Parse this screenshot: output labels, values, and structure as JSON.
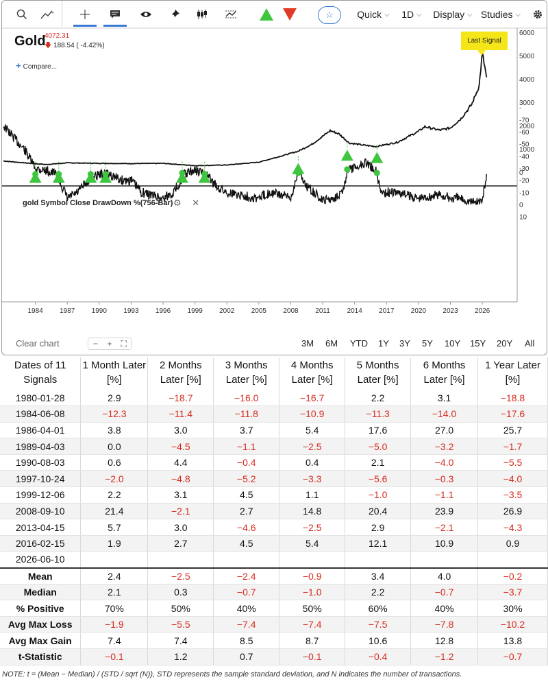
{
  "toolbar": {
    "fav_icon": "☆",
    "quick": "Quick",
    "interval": "1D",
    "display": "Display",
    "studies": "Studies",
    "colors": {
      "up": "#3ec63e",
      "down": "#e03b27",
      "accent": "#3b7bd4"
    }
  },
  "symbol": {
    "name": "Gold",
    "price": "4072.31",
    "change": "188.54 ( -4.42%)",
    "compare": "Compare..."
  },
  "chart": {
    "last_signal": "Last Signal",
    "indicator_title": "gold Symbol Close DrawDown %(756-Bar)",
    "price_ticks": [
      "6000",
      "5000",
      "4000",
      "3000",
      "2000",
      "1000",
      "0"
    ],
    "dd_ticks": [
      "10",
      "0",
      "-10",
      "-20",
      "-30",
      "-40",
      "-50",
      "-60",
      "-70",
      "-"
    ],
    "x_ticks": [
      "1984",
      "1987",
      "1990",
      "1993",
      "1996",
      "1999",
      "2002",
      "2005",
      "2008",
      "2011",
      "2014",
      "2017",
      "2020",
      "2023",
      "2026"
    ]
  },
  "chart_data": [
    {
      "type": "line",
      "title": "Gold",
      "x": [
        1981.0,
        1983.0,
        1985.0,
        1987.0,
        1990.0,
        1993.0,
        1996.0,
        1999.0,
        2002.0,
        2005.0,
        2007.0,
        2008.7,
        2010.0,
        2011.7,
        2012.5,
        2013.5,
        2015.0,
        2016.0,
        2018.0,
        2020.0,
        2020.6,
        2022.0,
        2023.0,
        2024.0,
        2025.0,
        2025.7,
        2026.0,
        2026.4
      ],
      "series": [
        {
          "values": [
            480,
            400,
            330,
            400,
            380,
            370,
            380,
            280,
            310,
            430,
            680,
            900,
            1200,
            1780,
            1650,
            1250,
            1150,
            1100,
            1280,
            1750,
            1950,
            1800,
            1900,
            2300,
            2900,
            3700,
            5100,
            4072
          ]
        }
      ],
      "ylim": [
        -500,
        6200
      ],
      "signals_x": [
        1984.0,
        1986.2,
        1989.2,
        1990.6,
        1997.8,
        1999.9,
        2008.7,
        2013.3,
        2016.1
      ],
      "signals_y": [
        -250,
        -250,
        -250,
        -250,
        -250,
        -250,
        130,
        700,
        600
      ]
    },
    {
      "type": "line",
      "title": "gold Symbol Close DrawDown %(756-Bar)",
      "x": [
        1981.0,
        1982.0,
        1983.0,
        1984.0,
        1985.0,
        1986.0,
        1987.0,
        1988.0,
        1989.0,
        1990.0,
        1991.0,
        1992.0,
        1993.0,
        1994.0,
        1996.0,
        1997.0,
        1998.0,
        1999.0,
        2000.0,
        2001.0,
        2002.0,
        2005.0,
        2006.0,
        2007.0,
        2008.0,
        2008.7,
        2009.5,
        2011.0,
        2012.0,
        2013.0,
        2013.3,
        2014.0,
        2015.0,
        2016.0,
        2016.5,
        2018.0,
        2020.0,
        2022.0,
        2023.0,
        2024.0,
        2025.0,
        2026.0,
        2026.4
      ],
      "series": [
        {
          "values": [
            -65,
            -55,
            -45,
            -30,
            -28,
            -25,
            -5,
            -10,
            -20,
            -25,
            -25,
            -20,
            -20,
            -10,
            -5,
            -10,
            -25,
            -28,
            -25,
            -15,
            -10,
            -5,
            -10,
            -8,
            -5,
            -28,
            -15,
            -3,
            -5,
            -12,
            -28,
            -30,
            -35,
            -28,
            -10,
            -10,
            -5,
            -8,
            -5,
            -5,
            -2,
            -3,
            -25
          ]
        }
      ],
      "ylim": [
        -75,
        12
      ],
      "signals_x": [
        1984.0,
        1986.2,
        1989.2,
        1990.6,
        1997.8,
        1999.9,
        2008.7,
        2013.3,
        2016.1
      ],
      "signals_y": [
        -25,
        -25,
        -25,
        -25,
        -26,
        -25,
        -26,
        -29,
        -26
      ]
    }
  ],
  "ranges": [
    "3M",
    "6M",
    "YTD",
    "1Y",
    "3Y",
    "5Y",
    "10Y",
    "15Y",
    "20Y",
    "All"
  ],
  "bottom": {
    "clear": "Clear chart",
    "zoom_out": "−",
    "zoom_in": "+",
    "fit": "⛶"
  },
  "table": {
    "headers": [
      "Dates of 11 Signals",
      "1 Month Later [%]",
      "2 Months Later [%]",
      "3 Months Later [%]",
      "4 Months Later [%]",
      "5 Months Later [%]",
      "6 Months Later [%]",
      "1 Year Later [%]"
    ],
    "rows": [
      [
        "1980-01-28",
        "2.9",
        "−18.7",
        "−16.0",
        "−16.7",
        "2.2",
        "3.1",
        "−18.8"
      ],
      [
        "1984-06-08",
        "−12.3",
        "−11.4",
        "−11.8",
        "−10.9",
        "−11.3",
        "−14.0",
        "−17.6"
      ],
      [
        "1986-04-01",
        "3.8",
        "3.0",
        "3.7",
        "5.4",
        "17.6",
        "27.0",
        "25.7"
      ],
      [
        "1989-04-03",
        "0.0",
        "−4.5",
        "−1.1",
        "−2.5",
        "−5.0",
        "−3.2",
        "−1.7"
      ],
      [
        "1990-08-03",
        "0.6",
        "4.4",
        "−0.4",
        "0.4",
        "2.1",
        "−4.0",
        "−5.5"
      ],
      [
        "1997-10-24",
        "−2.0",
        "−4.8",
        "−5.2",
        "−3.3",
        "−5.6",
        "−0.3",
        "−4.0"
      ],
      [
        "1999-12-06",
        "2.2",
        "3.1",
        "4.5",
        "1.1",
        "−1.0",
        "−1.1",
        "−3.5"
      ],
      [
        "2008-09-10",
        "21.4",
        "−2.1",
        "2.7",
        "14.8",
        "20.4",
        "23.9",
        "26.9"
      ],
      [
        "2013-04-15",
        "5.7",
        "3.0",
        "−4.6",
        "−2.5",
        "2.9",
        "−2.1",
        "−4.3"
      ],
      [
        "2016-02-15",
        "1.9",
        "2.7",
        "4.5",
        "5.4",
        "12.1",
        "10.9",
        "0.9"
      ],
      [
        "2026-06-10",
        "",
        "",
        "",
        "",
        "",
        "",
        ""
      ]
    ],
    "stats": [
      [
        "Mean",
        "2.4",
        "−2.5",
        "−2.4",
        "−0.9",
        "3.4",
        "4.0",
        "−0.2"
      ],
      [
        "Median",
        "2.1",
        "0.3",
        "−0.7",
        "−1.0",
        "2.2",
        "−0.7",
        "−3.7"
      ],
      [
        "% Positive",
        "70%",
        "50%",
        "40%",
        "50%",
        "60%",
        "40%",
        "30%"
      ],
      [
        "Avg Max Loss",
        "−1.9",
        "−5.5",
        "−7.4",
        "−7.4",
        "−7.5",
        "−7.8",
        "−10.2"
      ],
      [
        "Avg Max Gain",
        "7.4",
        "7.4",
        "8.5",
        "8.7",
        "10.6",
        "12.8",
        "13.8"
      ],
      [
        "t-Statistic",
        "−0.1",
        "1.2",
        "0.7",
        "−0.1",
        "−0.4",
        "−1.2",
        "−0.7"
      ]
    ]
  },
  "note": "NOTE: t = (Mean − Median) / (STD / sqrt (N)), STD represents the sample standard deviation, and N indicates the number of transactions."
}
